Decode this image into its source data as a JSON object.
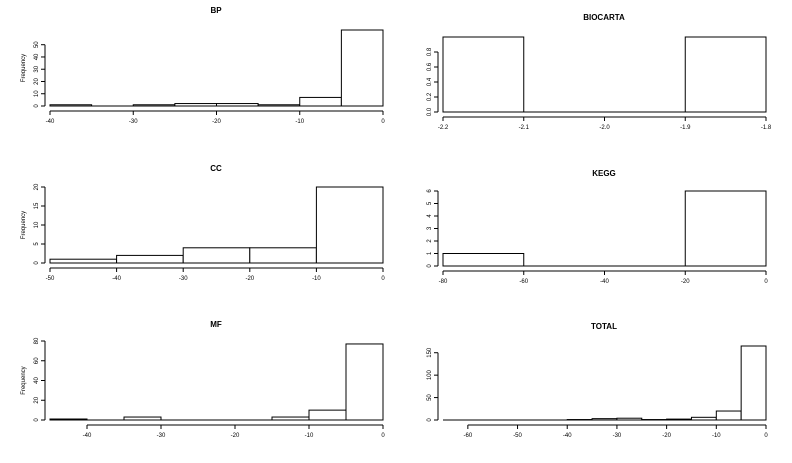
{
  "chart_data": [
    {
      "id": "bp",
      "type": "bar",
      "title": "BP",
      "ylabel": "Frequency",
      "bin_edges": [
        -40,
        -35,
        -30,
        -25,
        -20,
        -15,
        -10,
        -5,
        0
      ],
      "values": [
        1,
        0,
        1,
        2,
        2,
        1,
        7,
        62
      ],
      "x_ticks": [
        -40,
        -30,
        -20,
        -10,
        0
      ],
      "y_ticks": [
        0,
        10,
        20,
        30,
        40,
        50
      ],
      "xlim": [
        -40,
        0
      ],
      "ylim": [
        0,
        62
      ]
    },
    {
      "id": "biocarta",
      "type": "bar",
      "title": "BIOCARTA",
      "ylabel": "",
      "bin_edges": [
        -2.2,
        -2.1,
        -2.0,
        -1.9,
        -1.8
      ],
      "values": [
        1,
        0,
        0,
        1
      ],
      "x_ticks": [
        -2.2,
        -2.1,
        -2.0,
        -1.9,
        -1.8
      ],
      "x_tick_labels": [
        "-2.2",
        "-2.1",
        "-2.0",
        "-1.9",
        "-1.8"
      ],
      "y_ticks": [
        0.0,
        0.2,
        0.4,
        0.6,
        0.8
      ],
      "y_tick_labels": [
        "0.0",
        "0.2",
        "0.4",
        "0.6",
        "0.8"
      ],
      "xlim": [
        -2.2,
        -1.8
      ],
      "ylim": [
        0,
        1
      ]
    },
    {
      "id": "cc",
      "type": "bar",
      "title": "CC",
      "ylabel": "Frequency",
      "bin_edges": [
        -50,
        -40,
        -30,
        -20,
        -10,
        0
      ],
      "values": [
        1,
        2,
        4,
        4,
        20
      ],
      "x_ticks": [
        -50,
        -40,
        -30,
        -20,
        -10,
        0
      ],
      "y_ticks": [
        0,
        5,
        10,
        15,
        20
      ],
      "xlim": [
        -50,
        0
      ],
      "ylim": [
        0,
        20
      ]
    },
    {
      "id": "kegg",
      "type": "bar",
      "title": "KEGG",
      "ylabel": "",
      "bin_edges": [
        -80,
        -60,
        -40,
        -20,
        0
      ],
      "values": [
        1,
        0,
        0,
        6
      ],
      "x_ticks": [
        -80,
        -60,
        -40,
        -20,
        0
      ],
      "y_ticks": [
        0,
        1,
        2,
        3,
        4,
        5,
        6
      ],
      "xlim": [
        -80,
        0
      ],
      "ylim": [
        0,
        6
      ]
    },
    {
      "id": "mf",
      "type": "bar",
      "title": "MF",
      "ylabel": "Frequency",
      "bin_edges": [
        -45,
        -40,
        -35,
        -30,
        -25,
        -20,
        -15,
        -10,
        -5,
        0
      ],
      "values": [
        1,
        0,
        3,
        0,
        0,
        0,
        3,
        10,
        77
      ],
      "x_ticks": [
        -40,
        -30,
        -20,
        -10,
        0
      ],
      "y_ticks": [
        0,
        20,
        40,
        60,
        80
      ],
      "xlim": [
        -45,
        0
      ],
      "ylim": [
        0,
        80
      ]
    },
    {
      "id": "total",
      "type": "bar",
      "title": "TOTAL",
      "ylabel": "",
      "bin_edges": [
        -65,
        -60,
        -55,
        -50,
        -45,
        -40,
        -35,
        -30,
        -25,
        -20,
        -15,
        -10,
        -5,
        0
      ],
      "values": [
        0,
        0,
        0,
        0,
        0,
        1,
        3,
        4,
        1,
        2,
        6,
        20,
        165
      ],
      "x_ticks": [
        -60,
        -50,
        -40,
        -30,
        -20,
        -10,
        0
      ],
      "y_ticks": [
        0,
        50,
        100,
        150
      ],
      "xlim": [
        -65,
        0
      ],
      "ylim": [
        0,
        165
      ]
    }
  ]
}
